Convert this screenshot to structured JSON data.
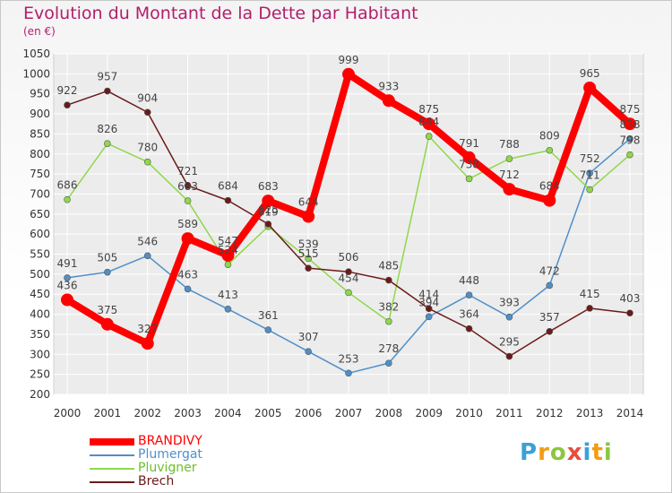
{
  "title": "Evolution du Montant de la Dette par Habitant",
  "unit_label": "(en €)",
  "logo_text": "Proxiti",
  "chart_data": {
    "type": "line",
    "title": "Evolution du Montant de la Dette par Habitant",
    "subtitle": "(en €)",
    "xlabel": "",
    "ylabel": "",
    "categories": [
      "2000",
      "2001",
      "2002",
      "2003",
      "2004",
      "2005",
      "2006",
      "2007",
      "2008",
      "2009",
      "2010",
      "2011",
      "2012",
      "2013",
      "2014"
    ],
    "ylim": [
      200,
      1050
    ],
    "yticks": [
      200,
      250,
      300,
      350,
      400,
      450,
      500,
      550,
      600,
      650,
      700,
      750,
      800,
      850,
      900,
      950,
      1000,
      1050
    ],
    "grid": true,
    "legend_position": "bottom-left",
    "series": [
      {
        "name": "BRANDIVY",
        "color": "#ff0000",
        "values": [
          436,
          375,
          327,
          589,
          547,
          683,
          644,
          999,
          933,
          875,
          791,
          712,
          684,
          965,
          875
        ]
      },
      {
        "name": "Plumergat",
        "color": "#4f8fc9",
        "values": [
          491,
          505,
          546,
          463,
          413,
          361,
          307,
          253,
          278,
          394,
          448,
          393,
          472,
          752,
          838
        ]
      },
      {
        "name": "Pluvigner",
        "color": "#8ed84a",
        "values": [
          686,
          826,
          780,
          683,
          524,
          619,
          539,
          454,
          382,
          844,
          738,
          788,
          809,
          711,
          798
        ]
      },
      {
        "name": "Brech",
        "color": "#6b1a1a",
        "values": [
          922,
          957,
          904,
          721,
          684,
          625,
          515,
          506,
          485,
          414,
          364,
          295,
          357,
          415,
          403
        ]
      }
    ]
  }
}
